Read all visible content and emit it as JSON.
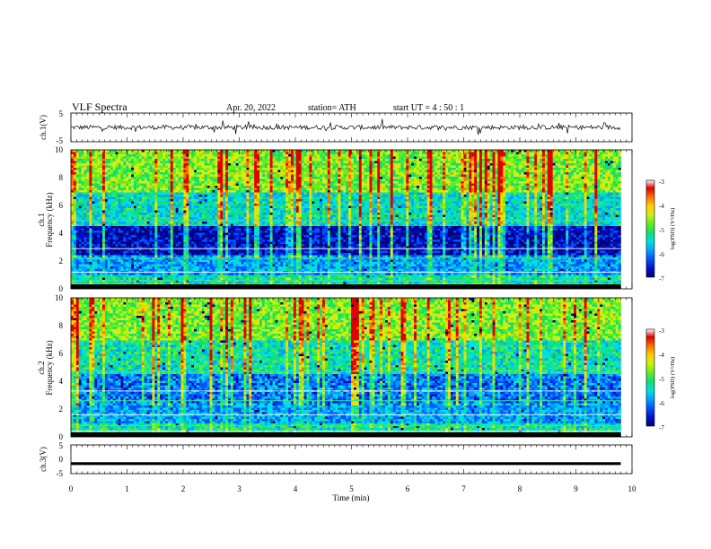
{
  "header": {
    "title": "VLF  Spectra",
    "date": "Apr. 20, 2022",
    "station": "station= ATH",
    "start": "start  UT  =   4  : 50 : 1"
  },
  "chart_data": [
    {
      "type": "line",
      "panel": "ch1-waveform",
      "ylabel": "ch.1(V)",
      "ylim": [
        -5,
        5
      ],
      "yticks": [
        "5",
        "-5"
      ],
      "xlim": [
        0,
        10
      ],
      "data_extent_min": 9.8,
      "series": [
        {
          "baseline": 0,
          "amplitude": 1.0
        }
      ]
    },
    {
      "type": "heatmap",
      "panel": "ch1-spectrogram",
      "ylabel": "ch.1",
      "ylabel2": "Frequency (kHz)",
      "ylim": [
        0,
        10
      ],
      "yticks": [
        "0",
        "2",
        "4",
        "6",
        "8",
        "10"
      ],
      "xlim": [
        0,
        10
      ],
      "colorbar": {
        "label": "log(PSD) (V²/Hz)",
        "range": [
          -7,
          -3
        ],
        "ticks": [
          "-3",
          "-4",
          "-5",
          "-6",
          "-7"
        ]
      }
    },
    {
      "type": "heatmap",
      "panel": "ch2-spectrogram",
      "ylabel": "ch.2",
      "ylabel2": "Frequency (kHz)",
      "ylim": [
        0,
        10
      ],
      "yticks": [
        "0",
        "2",
        "4",
        "6",
        "8",
        "10"
      ],
      "xlim": [
        0,
        10
      ],
      "colorbar": {
        "label": "log(PSD) (V²/Hz)",
        "range": [
          -7,
          -3
        ],
        "ticks": [
          "-3",
          "-4",
          "-5",
          "-6",
          "-7"
        ]
      }
    },
    {
      "type": "line",
      "panel": "ch3-waveform",
      "ylabel": "ch.3(V)",
      "ylim": [
        -5,
        5
      ],
      "yticks": [
        "5",
        "0",
        "-5"
      ],
      "xlim": [
        0,
        10
      ],
      "series": [
        {
          "baseline": -1.5,
          "amplitude": 0.15
        }
      ]
    }
  ],
  "xaxis": {
    "label": "Time  (min)",
    "ticks": [
      "0",
      "1",
      "2",
      "3",
      "4",
      "5",
      "6",
      "7",
      "8",
      "9",
      "10"
    ]
  },
  "colors": {
    "axis": "#000000",
    "colormap": [
      "#00007a",
      "#0010c8",
      "#0050ff",
      "#00a0ff",
      "#00e0e0",
      "#10e070",
      "#60f020",
      "#d0f010",
      "#ffd000",
      "#ff7000",
      "#e00000",
      "#ffffff"
    ]
  }
}
